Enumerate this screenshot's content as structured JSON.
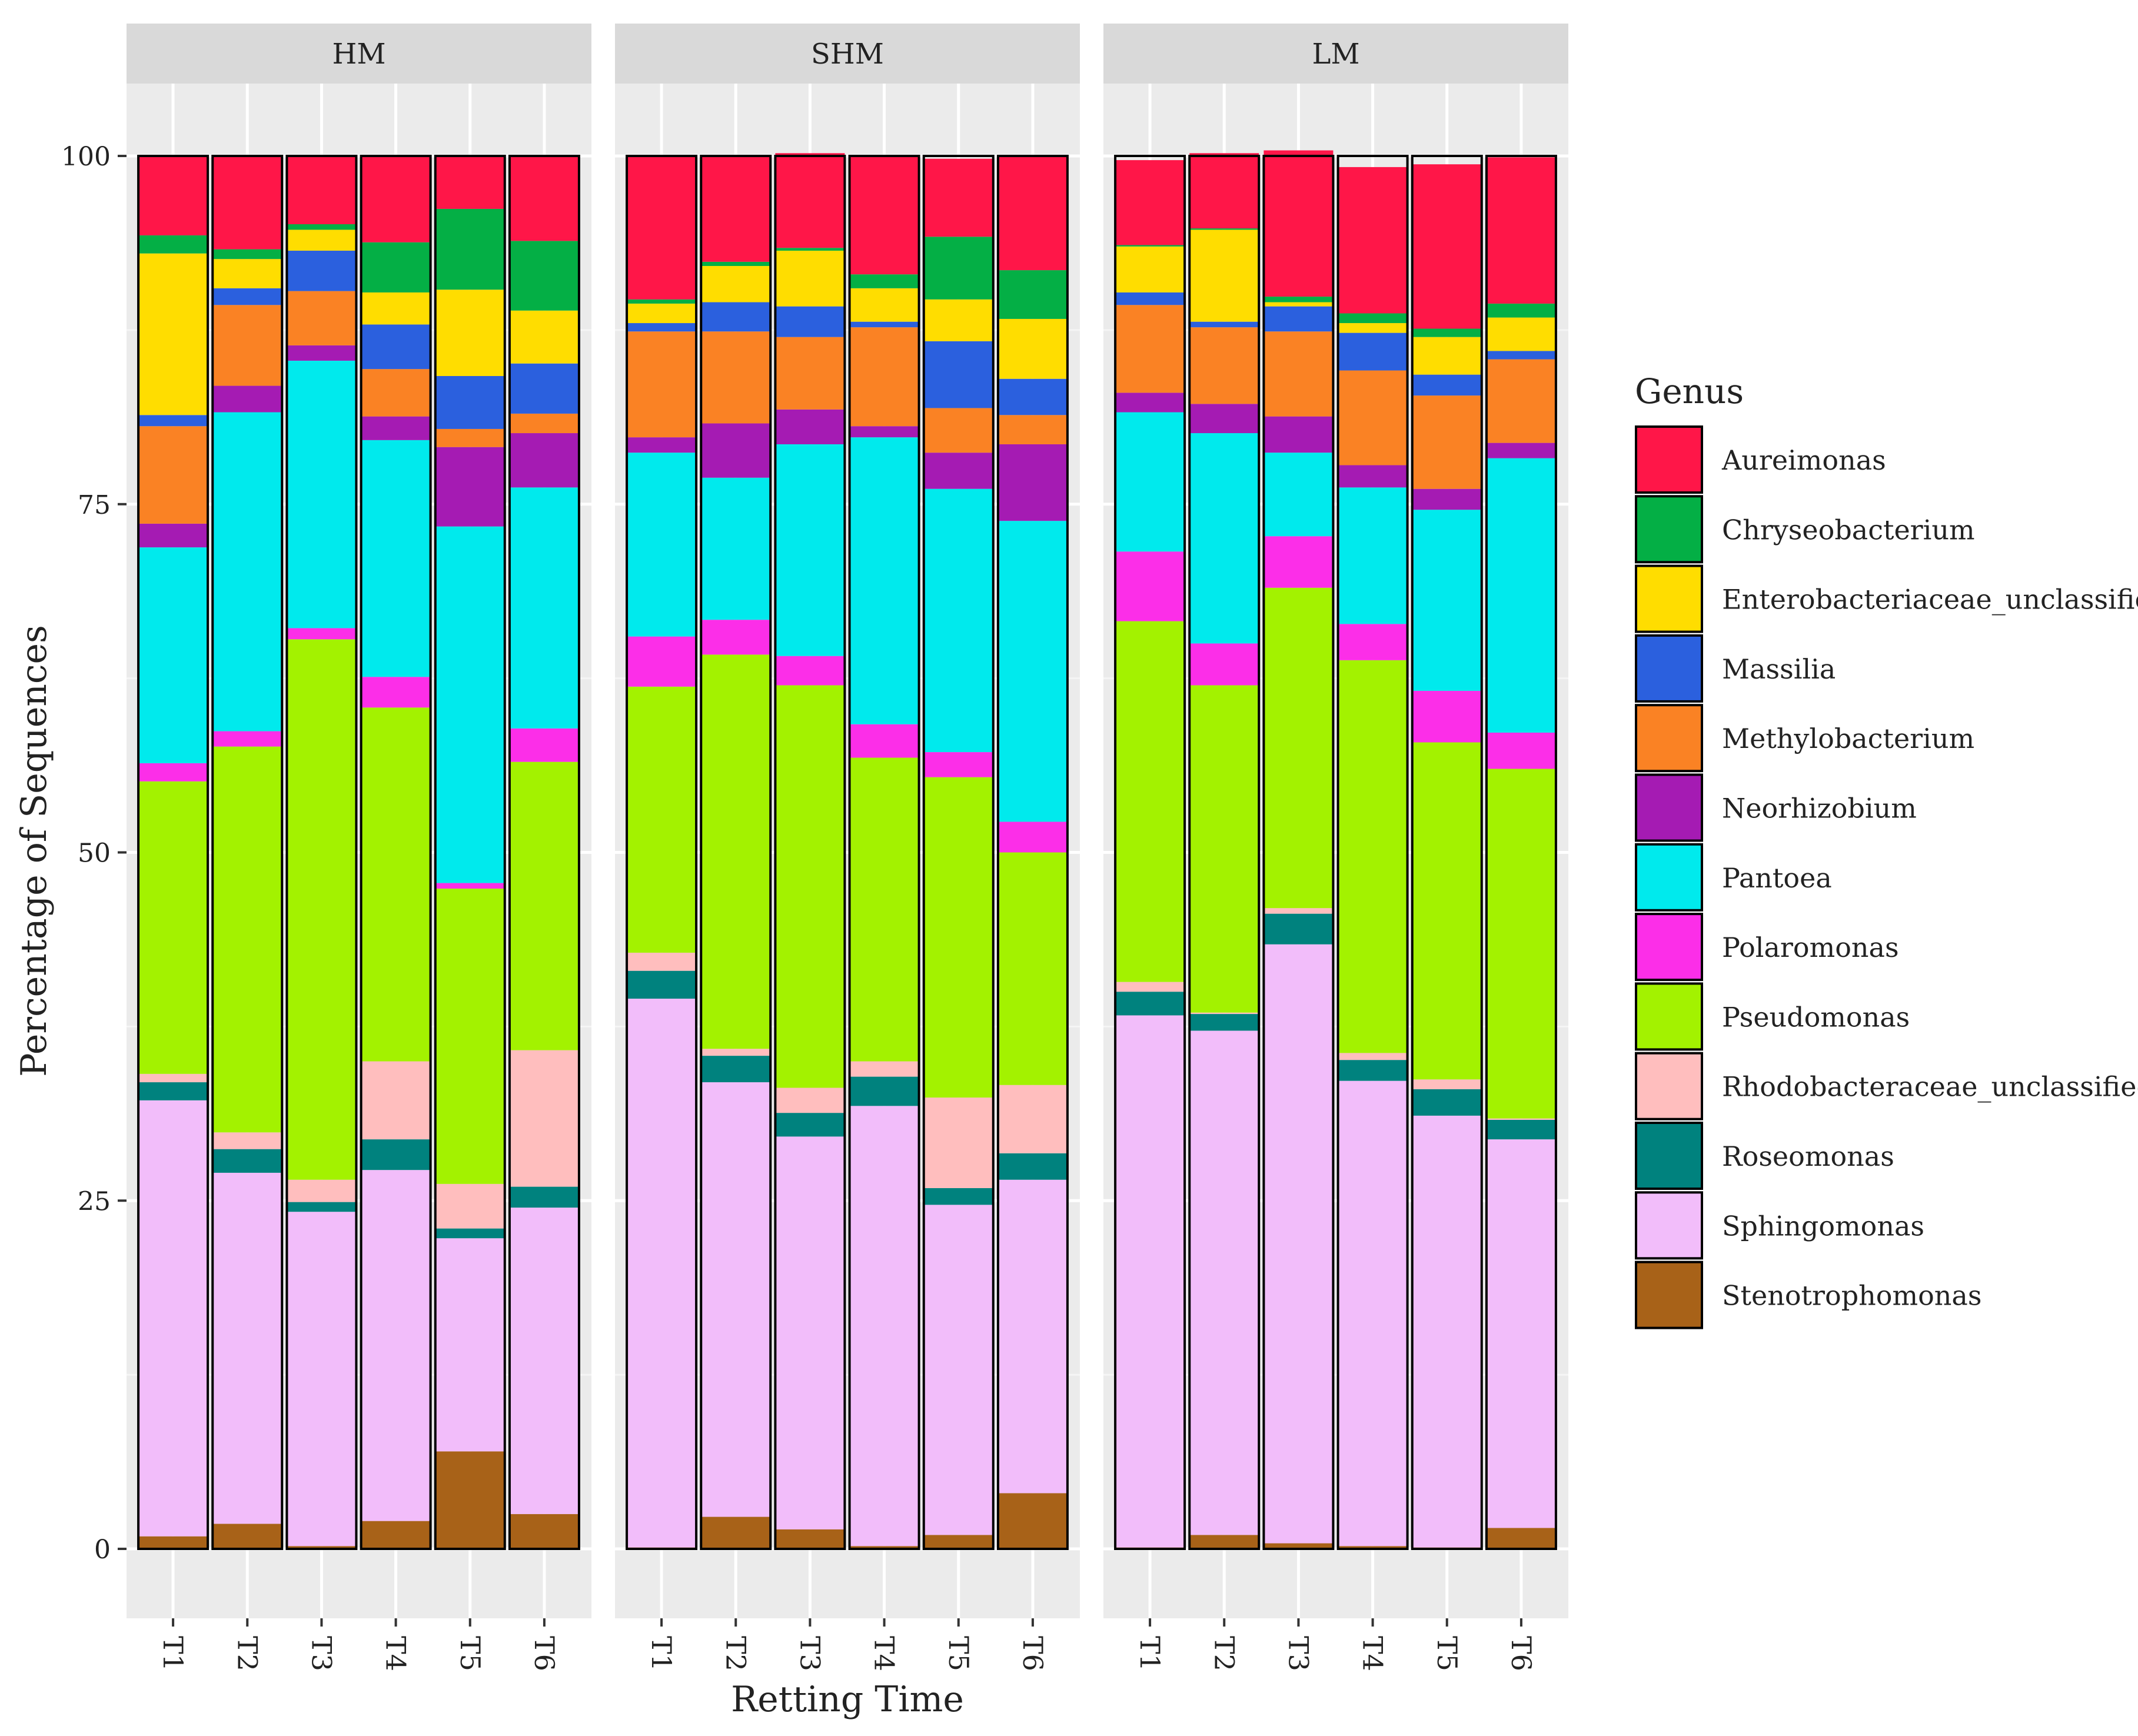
{
  "chart_data": {
    "type": "stacked-bar",
    "facet_label_title": "",
    "facets": [
      "HM",
      "SHM",
      "LM"
    ],
    "categories": [
      "T1",
      "T2",
      "T3",
      "T4",
      "T5",
      "T6"
    ],
    "xlabel": "Retting Time",
    "ylabel": "Percentage of Sequences",
    "ylim": [
      0,
      100
    ],
    "y_ticks": [
      "0",
      "25",
      "50",
      "75",
      "100"
    ],
    "legend_title": "Genus",
    "legend_position": "right",
    "grid": true,
    "series": [
      {
        "name": "Stenotrophomonas",
        "color": "#A86218",
        "values": {
          "HM": [
            0.9,
            1.8,
            0.2,
            2.0,
            7.0,
            2.5
          ],
          "SHM": [
            0.1,
            2.3,
            1.4,
            0.2,
            1.0,
            4.0
          ],
          "LM": [
            0.1,
            1.0,
            0.4,
            0.2,
            0.1,
            1.5
          ]
        }
      },
      {
        "name": "Sphingomonas",
        "color": "#F2BDFA",
        "values": {
          "HM": [
            31.3,
            25.2,
            24.0,
            25.2,
            15.3,
            22.0
          ],
          "SHM": [
            39.4,
            31.2,
            28.2,
            31.6,
            23.7,
            22.5
          ],
          "LM": [
            38.2,
            36.2,
            43.0,
            33.4,
            31.0,
            27.9
          ]
        }
      },
      {
        "name": "Roseomonas",
        "color": "#00827E",
        "values": {
          "HM": [
            1.3,
            1.7,
            0.7,
            2.2,
            0.7,
            1.5
          ],
          "SHM": [
            2.0,
            1.9,
            1.7,
            2.1,
            1.2,
            1.9
          ],
          "LM": [
            1.7,
            1.2,
            2.2,
            1.5,
            1.9,
            1.4
          ]
        }
      },
      {
        "name": "Rhodobacteraceae_unclassified",
        "color": "#FFBEBE",
        "values": {
          "HM": [
            0.6,
            1.2,
            1.6,
            5.6,
            3.2,
            9.8
          ],
          "SHM": [
            1.3,
            0.5,
            1.8,
            1.1,
            6.5,
            4.9
          ],
          "LM": [
            0.7,
            0.1,
            0.4,
            0.5,
            0.7,
            0.1
          ]
        }
      },
      {
        "name": "Pseudomonas",
        "color": "#A3F200",
        "values": {
          "HM": [
            21.0,
            27.7,
            38.8,
            25.4,
            21.2,
            20.7
          ],
          "SHM": [
            19.1,
            28.3,
            28.9,
            21.8,
            23.0,
            16.7
          ],
          "LM": [
            25.9,
            23.5,
            23.0,
            28.2,
            24.2,
            25.1
          ]
        }
      },
      {
        "name": "Polaromonas",
        "color": "#FC2EE8",
        "values": {
          "HM": [
            1.3,
            1.1,
            0.8,
            2.2,
            0.4,
            2.4
          ],
          "SHM": [
            3.6,
            2.5,
            2.1,
            2.4,
            1.8,
            2.2
          ],
          "LM": [
            5.0,
            3.0,
            3.7,
            2.6,
            3.7,
            2.6
          ]
        }
      },
      {
        "name": "Pantoea",
        "color": "#00EAED",
        "values": {
          "HM": [
            15.5,
            22.9,
            19.2,
            17.0,
            25.6,
            17.3
          ],
          "SHM": [
            13.2,
            10.2,
            15.2,
            20.6,
            18.9,
            21.6
          ],
          "LM": [
            10.0,
            15.1,
            6.0,
            9.8,
            13.0,
            19.7
          ]
        }
      },
      {
        "name": "Neorhizobium",
        "color": "#A51BB3",
        "values": {
          "HM": [
            1.7,
            1.9,
            1.1,
            1.7,
            5.7,
            3.9
          ],
          "SHM": [
            1.1,
            3.9,
            2.5,
            0.8,
            2.6,
            5.5
          ],
          "LM": [
            1.4,
            2.1,
            2.6,
            1.6,
            1.5,
            1.1
          ]
        }
      },
      {
        "name": "Methylobacterium",
        "color": "#FA8224",
        "values": {
          "HM": [
            7.0,
            5.8,
            3.9,
            3.4,
            1.3,
            1.4
          ],
          "SHM": [
            7.6,
            6.6,
            5.2,
            7.1,
            3.2,
            2.1
          ],
          "LM": [
            6.3,
            5.5,
            6.1,
            6.8,
            6.7,
            6.0
          ]
        }
      },
      {
        "name": "Massilia",
        "color": "#2B60DE",
        "values": {
          "HM": [
            0.8,
            1.2,
            2.9,
            3.2,
            3.8,
            3.6
          ],
          "SHM": [
            0.6,
            2.1,
            2.2,
            0.4,
            4.8,
            2.6
          ],
          "LM": [
            0.9,
            0.4,
            1.8,
            2.7,
            1.5,
            0.6
          ]
        }
      },
      {
        "name": "Enterobacteriaceae_unclassified",
        "color": "#FFDD00",
        "values": {
          "HM": [
            11.6,
            2.1,
            1.5,
            2.3,
            6.2,
            3.8
          ],
          "SHM": [
            1.4,
            2.6,
            4.0,
            2.4,
            3.0,
            4.3
          ],
          "LM": [
            3.3,
            6.6,
            0.3,
            0.7,
            2.7,
            2.4
          ]
        }
      },
      {
        "name": "Chryseobacterium",
        "color": "#04AF45",
        "values": {
          "HM": [
            1.3,
            0.7,
            0.4,
            3.6,
            5.8,
            5.0
          ],
          "SHM": [
            0.3,
            0.3,
            0.2,
            1.0,
            4.5,
            3.5
          ],
          "LM": [
            0.1,
            0.1,
            0.4,
            0.7,
            0.6,
            1.0
          ]
        }
      },
      {
        "name": "Aureimonas",
        "color": "#FF1648",
        "values": {
          "HM": [
            5.7,
            6.7,
            4.9,
            6.2,
            3.8,
            6.1
          ],
          "SHM": [
            10.3,
            7.6,
            6.8,
            8.5,
            5.6,
            8.2
          ],
          "LM": [
            6.1,
            5.4,
            10.5,
            10.5,
            11.8,
            10.5
          ]
        }
      }
    ]
  }
}
